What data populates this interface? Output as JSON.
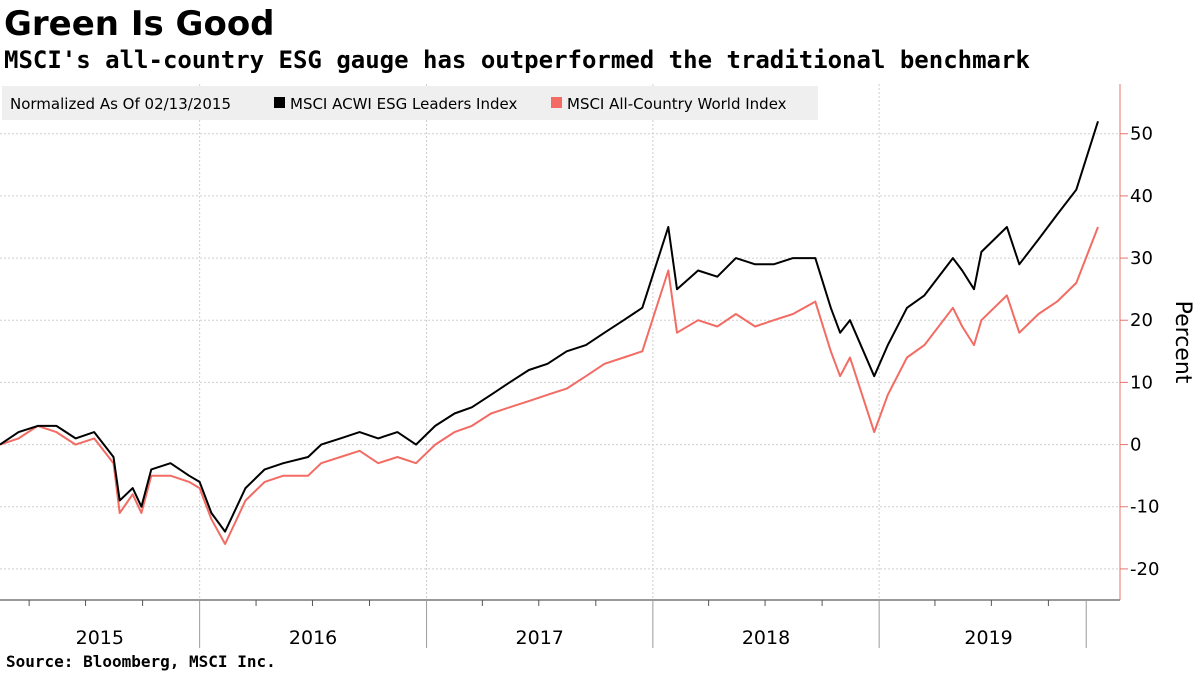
{
  "title": "Green Is Good",
  "subtitle": "MSCI's all-country ESG gauge has outperformed the traditional benchmark",
  "source": "Source: Bloomberg, MSCI Inc.",
  "chart_data": {
    "type": "line",
    "legend": {
      "prefix": "Normalized As Of 02/13/2015",
      "placement": "top-left"
    },
    "ylabel": "Percent",
    "ylim": [
      -25,
      58
    ],
    "y_ticks": [
      -20,
      -10,
      0,
      10,
      20,
      30,
      40,
      50
    ],
    "y_tick_labels": [
      "-20",
      "-10",
      "0",
      "10",
      "20",
      "30",
      "40",
      "50"
    ],
    "x_range": [
      "2015-02-13",
      "2019-12-20"
    ],
    "x_tick_labels": [
      "2015",
      "2016",
      "2017",
      "2018",
      "2019"
    ],
    "grid": true,
    "series": [
      {
        "name": "MSCI ACWI ESG Leaders Index",
        "color": "#000000",
        "x": [
          "2015-02-13",
          "2015-03-15",
          "2015-04-15",
          "2015-05-15",
          "2015-06-15",
          "2015-07-15",
          "2015-08-15",
          "2015-08-25",
          "2015-09-15",
          "2015-09-29",
          "2015-10-15",
          "2015-11-15",
          "2015-12-15",
          "2016-01-01",
          "2016-01-20",
          "2016-02-11",
          "2016-03-15",
          "2016-04-15",
          "2016-05-15",
          "2016-06-24",
          "2016-07-15",
          "2016-08-15",
          "2016-09-15",
          "2016-10-15",
          "2016-11-15",
          "2016-12-15",
          "2017-01-15",
          "2017-02-15",
          "2017-03-15",
          "2017-04-15",
          "2017-05-15",
          "2017-06-15",
          "2017-07-15",
          "2017-08-15",
          "2017-09-15",
          "2017-10-15",
          "2017-11-15",
          "2017-12-15",
          "2018-01-26",
          "2018-02-09",
          "2018-03-15",
          "2018-04-15",
          "2018-05-15",
          "2018-06-15",
          "2018-07-15",
          "2018-08-15",
          "2018-09-20",
          "2018-10-15",
          "2018-10-30",
          "2018-11-15",
          "2018-12-24",
          "2019-01-15",
          "2019-02-15",
          "2019-03-15",
          "2019-04-30",
          "2019-05-15",
          "2019-06-03",
          "2019-06-15",
          "2019-07-26",
          "2019-08-15",
          "2019-09-15",
          "2019-10-15",
          "2019-11-15",
          "2019-12-20"
        ],
        "values": [
          0,
          2,
          3,
          3,
          1,
          2,
          -2,
          -9,
          -7,
          -10,
          -4,
          -3,
          -5,
          -6,
          -11,
          -14,
          -7,
          -4,
          -3,
          -2,
          0,
          1,
          2,
          1,
          2,
          0,
          3,
          5,
          6,
          8,
          10,
          12,
          13,
          15,
          16,
          18,
          20,
          22,
          35,
          25,
          28,
          27,
          30,
          29,
          29,
          30,
          30,
          22,
          18,
          20,
          11,
          16,
          22,
          24,
          30,
          28,
          25,
          31,
          35,
          29,
          33,
          37,
          41,
          52
        ]
      },
      {
        "name": "MSCI All-Country World Index",
        "color": "#f26c64",
        "x": [
          "2015-02-13",
          "2015-03-15",
          "2015-04-15",
          "2015-05-15",
          "2015-06-15",
          "2015-07-15",
          "2015-08-15",
          "2015-08-25",
          "2015-09-15",
          "2015-09-29",
          "2015-10-15",
          "2015-11-15",
          "2015-12-15",
          "2016-01-01",
          "2016-01-20",
          "2016-02-11",
          "2016-03-15",
          "2016-04-15",
          "2016-05-15",
          "2016-06-24",
          "2016-07-15",
          "2016-08-15",
          "2016-09-15",
          "2016-10-15",
          "2016-11-15",
          "2016-12-15",
          "2017-01-15",
          "2017-02-15",
          "2017-03-15",
          "2017-04-15",
          "2017-05-15",
          "2017-06-15",
          "2017-07-15",
          "2017-08-15",
          "2017-09-15",
          "2017-10-15",
          "2017-11-15",
          "2017-12-15",
          "2018-01-26",
          "2018-02-09",
          "2018-03-15",
          "2018-04-15",
          "2018-05-15",
          "2018-06-15",
          "2018-07-15",
          "2018-08-15",
          "2018-09-20",
          "2018-10-15",
          "2018-10-30",
          "2018-11-15",
          "2018-12-24",
          "2019-01-15",
          "2019-02-15",
          "2019-03-15",
          "2019-04-30",
          "2019-05-15",
          "2019-06-03",
          "2019-06-15",
          "2019-07-26",
          "2019-08-15",
          "2019-09-15",
          "2019-10-15",
          "2019-11-15",
          "2019-12-20"
        ],
        "values": [
          0,
          1,
          3,
          2,
          0,
          1,
          -3,
          -11,
          -8,
          -11,
          -5,
          -5,
          -6,
          -7,
          -12,
          -16,
          -9,
          -6,
          -5,
          -5,
          -3,
          -2,
          -1,
          -3,
          -2,
          -3,
          0,
          2,
          3,
          5,
          6,
          7,
          8,
          9,
          11,
          13,
          14,
          15,
          28,
          18,
          20,
          19,
          21,
          19,
          20,
          21,
          23,
          15,
          11,
          14,
          2,
          8,
          14,
          16,
          22,
          19,
          16,
          20,
          24,
          18,
          21,
          23,
          26,
          35
        ]
      }
    ]
  }
}
